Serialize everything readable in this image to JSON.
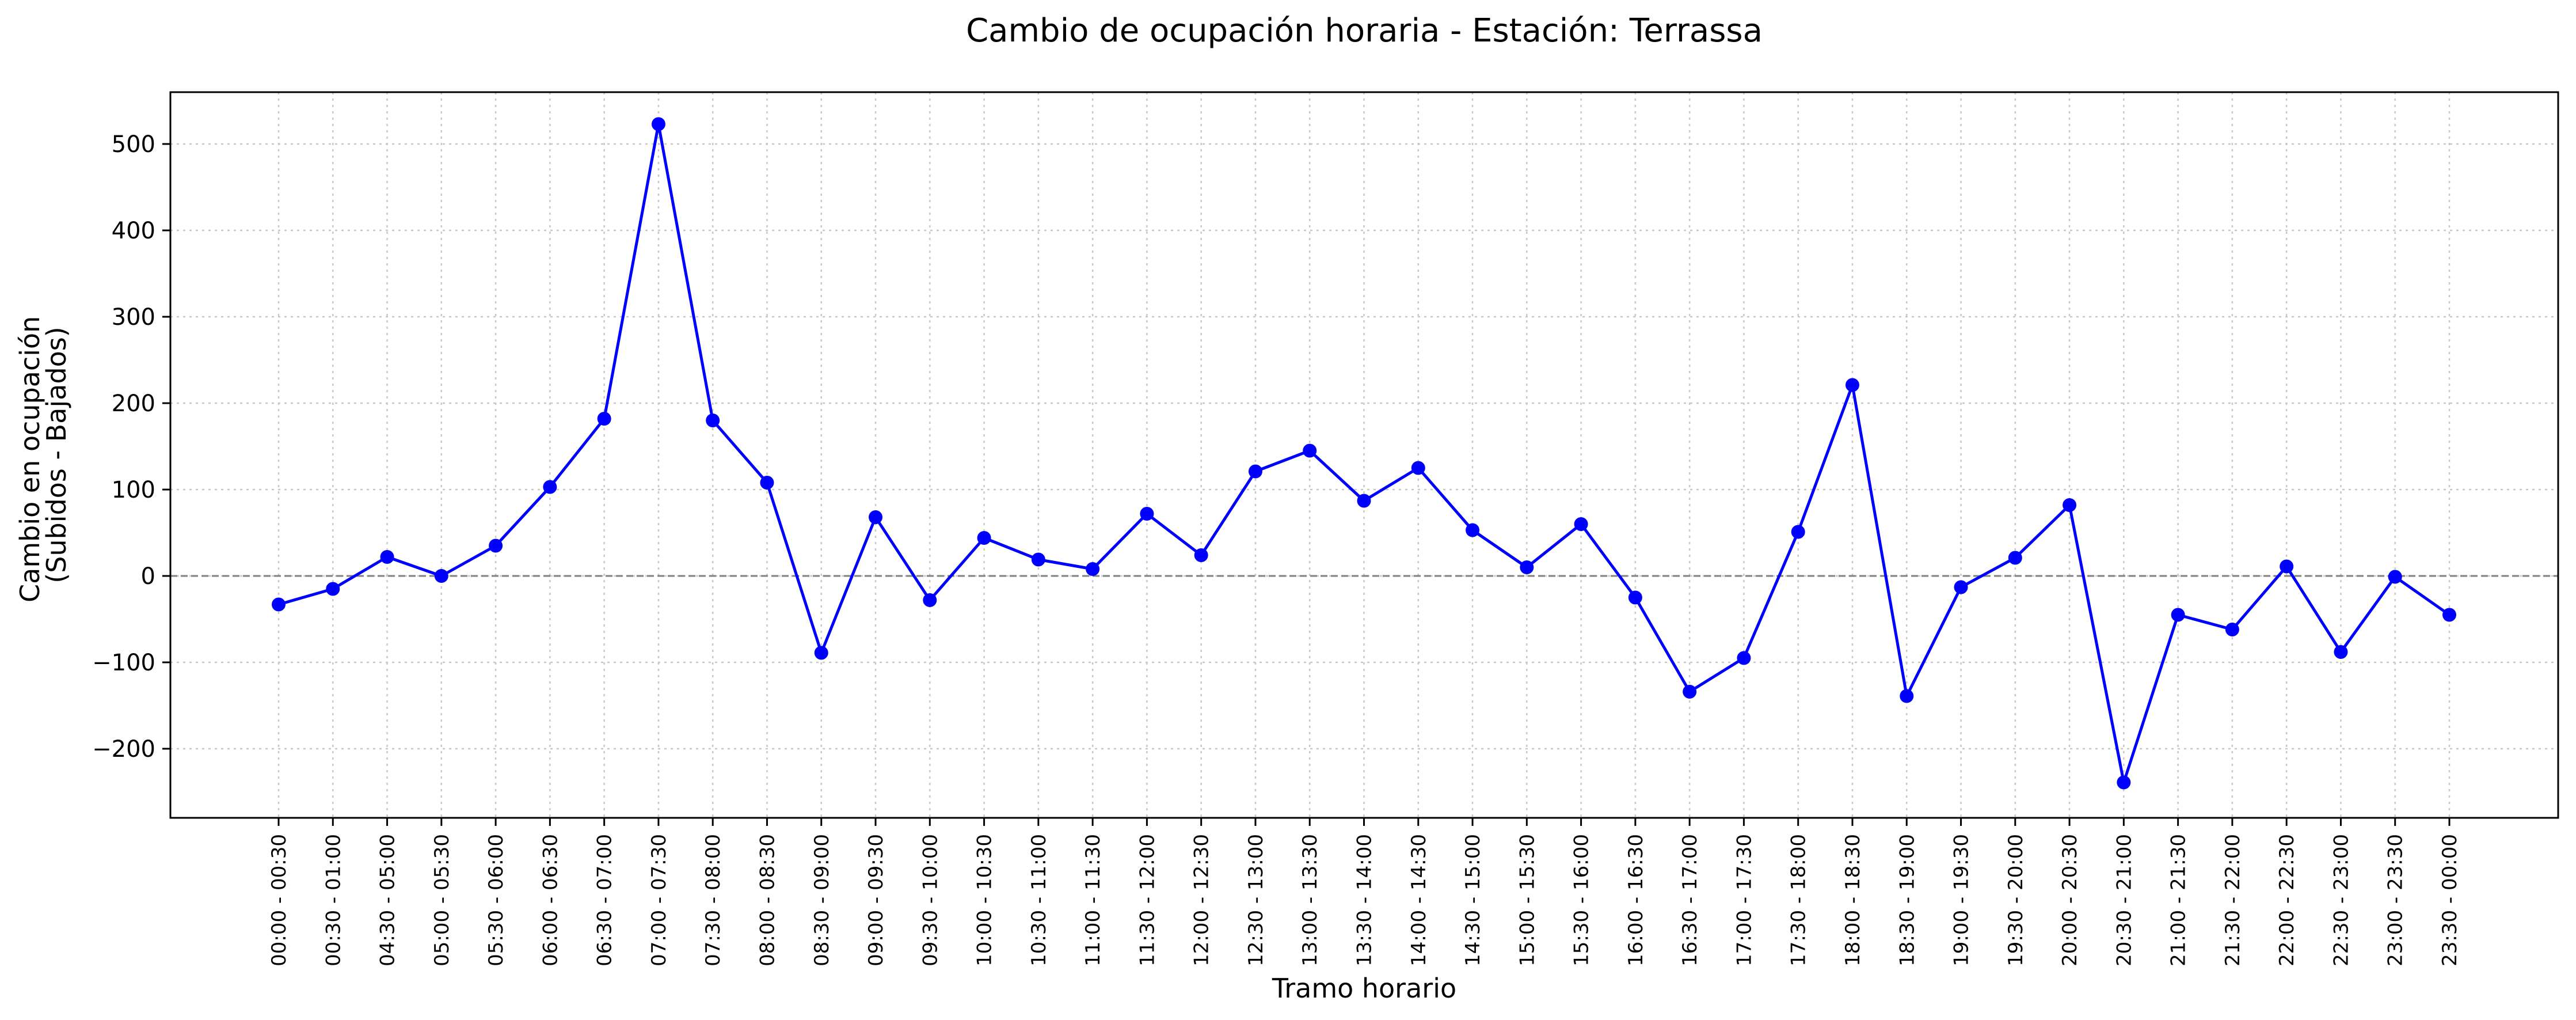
{
  "chart_data": {
    "type": "line",
    "title": "Cambio de ocupación horaria - Estación: Terrassa",
    "xlabel": "Tramo horario",
    "ylabel_lines": [
      "Cambio en ocupación",
      "(Subidos - Bajados)"
    ],
    "ylim": [
      -280,
      560
    ],
    "yticks": [
      -200,
      -100,
      0,
      100,
      200,
      300,
      400,
      500
    ],
    "ytick_labels": [
      "−200",
      "−100",
      "0",
      "100",
      "200",
      "300",
      "400",
      "500"
    ],
    "grid": true,
    "zero_line": true,
    "line_color": "#0000ff",
    "zero_line_color": "#808080",
    "categories": [
      "00:00 - 00:30",
      "00:30 - 01:00",
      "04:30 - 05:00",
      "05:00 - 05:30",
      "05:30 - 06:00",
      "06:00 - 06:30",
      "06:30 - 07:00",
      "07:00 - 07:30",
      "07:30 - 08:00",
      "08:00 - 08:30",
      "08:30 - 09:00",
      "09:00 - 09:30",
      "09:30 - 10:00",
      "10:00 - 10:30",
      "10:30 - 11:00",
      "11:00 - 11:30",
      "11:30 - 12:00",
      "12:00 - 12:30",
      "12:30 - 13:00",
      "13:00 - 13:30",
      "13:30 - 14:00",
      "14:00 - 14:30",
      "14:30 - 15:00",
      "15:00 - 15:30",
      "15:30 - 16:00",
      "16:00 - 16:30",
      "16:30 - 17:00",
      "17:00 - 17:30",
      "17:30 - 18:00",
      "18:00 - 18:30",
      "18:30 - 19:00",
      "19:00 - 19:30",
      "19:30 - 20:00",
      "20:00 - 20:30",
      "20:30 - 21:00",
      "21:00 - 21:30",
      "21:30 - 22:00",
      "22:00 - 22:30",
      "22:30 - 23:00",
      "23:00 - 23:30",
      "23:30 - 00:00"
    ],
    "values": [
      -33,
      -15,
      22,
      0,
      35,
      103,
      182,
      523,
      180,
      108,
      -89,
      68,
      -28,
      44,
      19,
      8,
      72,
      24,
      121,
      145,
      87,
      125,
      53,
      10,
      60,
      -25,
      -134,
      -95,
      51,
      221,
      -139,
      -13,
      21,
      82,
      -239,
      -45,
      -62,
      11,
      -88,
      -1,
      -45
    ]
  }
}
